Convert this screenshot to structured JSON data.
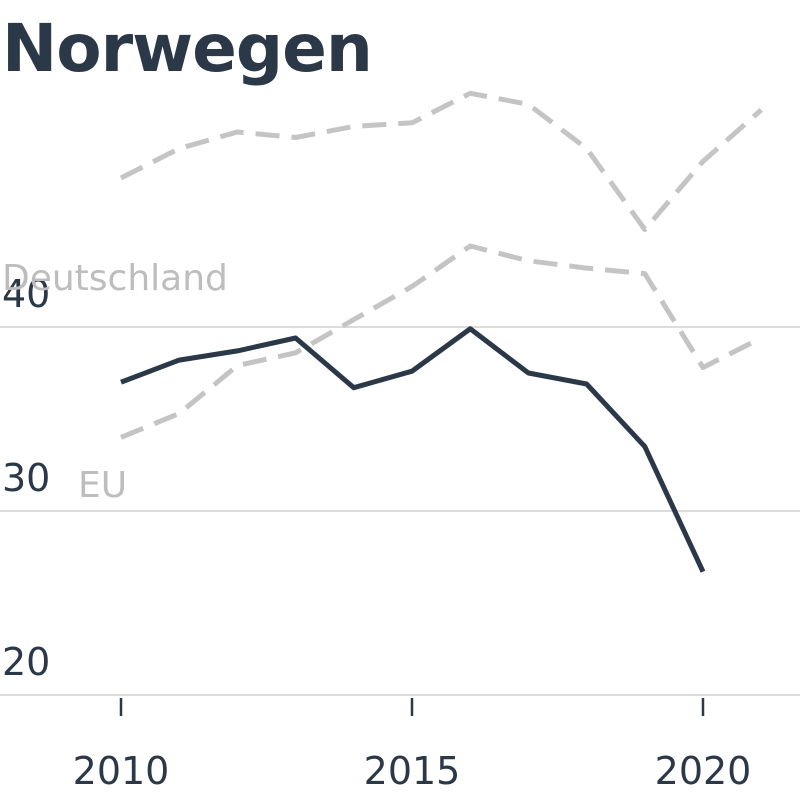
{
  "chart_data": {
    "type": "line",
    "title": "Norwegen",
    "xlabel": "",
    "ylabel": "",
    "x_ticks": [
      "2010",
      "2015",
      "2020"
    ],
    "y_ticks": [
      "20",
      "30",
      "40"
    ],
    "ylim": [
      20,
      42
    ],
    "xlim": [
      2008,
      2022
    ],
    "grid": "horizontal",
    "series": [
      {
        "name": "Norwegen",
        "style": "solid",
        "color": "#2b3847",
        "x": [
          2010,
          2011,
          2012,
          2013,
          2014,
          2015,
          2016,
          2017,
          2018,
          2019,
          2020
        ],
        "values": [
          37.0,
          38.2,
          38.7,
          39.4,
          36.7,
          37.6,
          39.9,
          37.5,
          36.9,
          33.5,
          26.7
        ]
      },
      {
        "name": "Deutschland",
        "style": "dashed",
        "color": "#c4c4c4",
        "x": [
          2010,
          2011,
          2012,
          2013,
          2014,
          2015,
          2016,
          2017,
          2018,
          2019,
          2020,
          2021
        ],
        "values": [
          48.1,
          49.7,
          50.6,
          50.3,
          50.9,
          51.1,
          52.7,
          52.1,
          49.7,
          45.3,
          49.0,
          51.8
        ]
      },
      {
        "name": "EU",
        "style": "dashed",
        "color": "#c4c4c4",
        "x": [
          2010,
          2011,
          2012,
          2013,
          2014,
          2015,
          2016,
          2017,
          2018,
          2019,
          2020,
          2021
        ],
        "values": [
          34.0,
          35.3,
          37.9,
          38.6,
          40.4,
          42.2,
          44.4,
          43.6,
          43.2,
          42.9,
          37.8,
          39.4
        ]
      }
    ]
  }
}
